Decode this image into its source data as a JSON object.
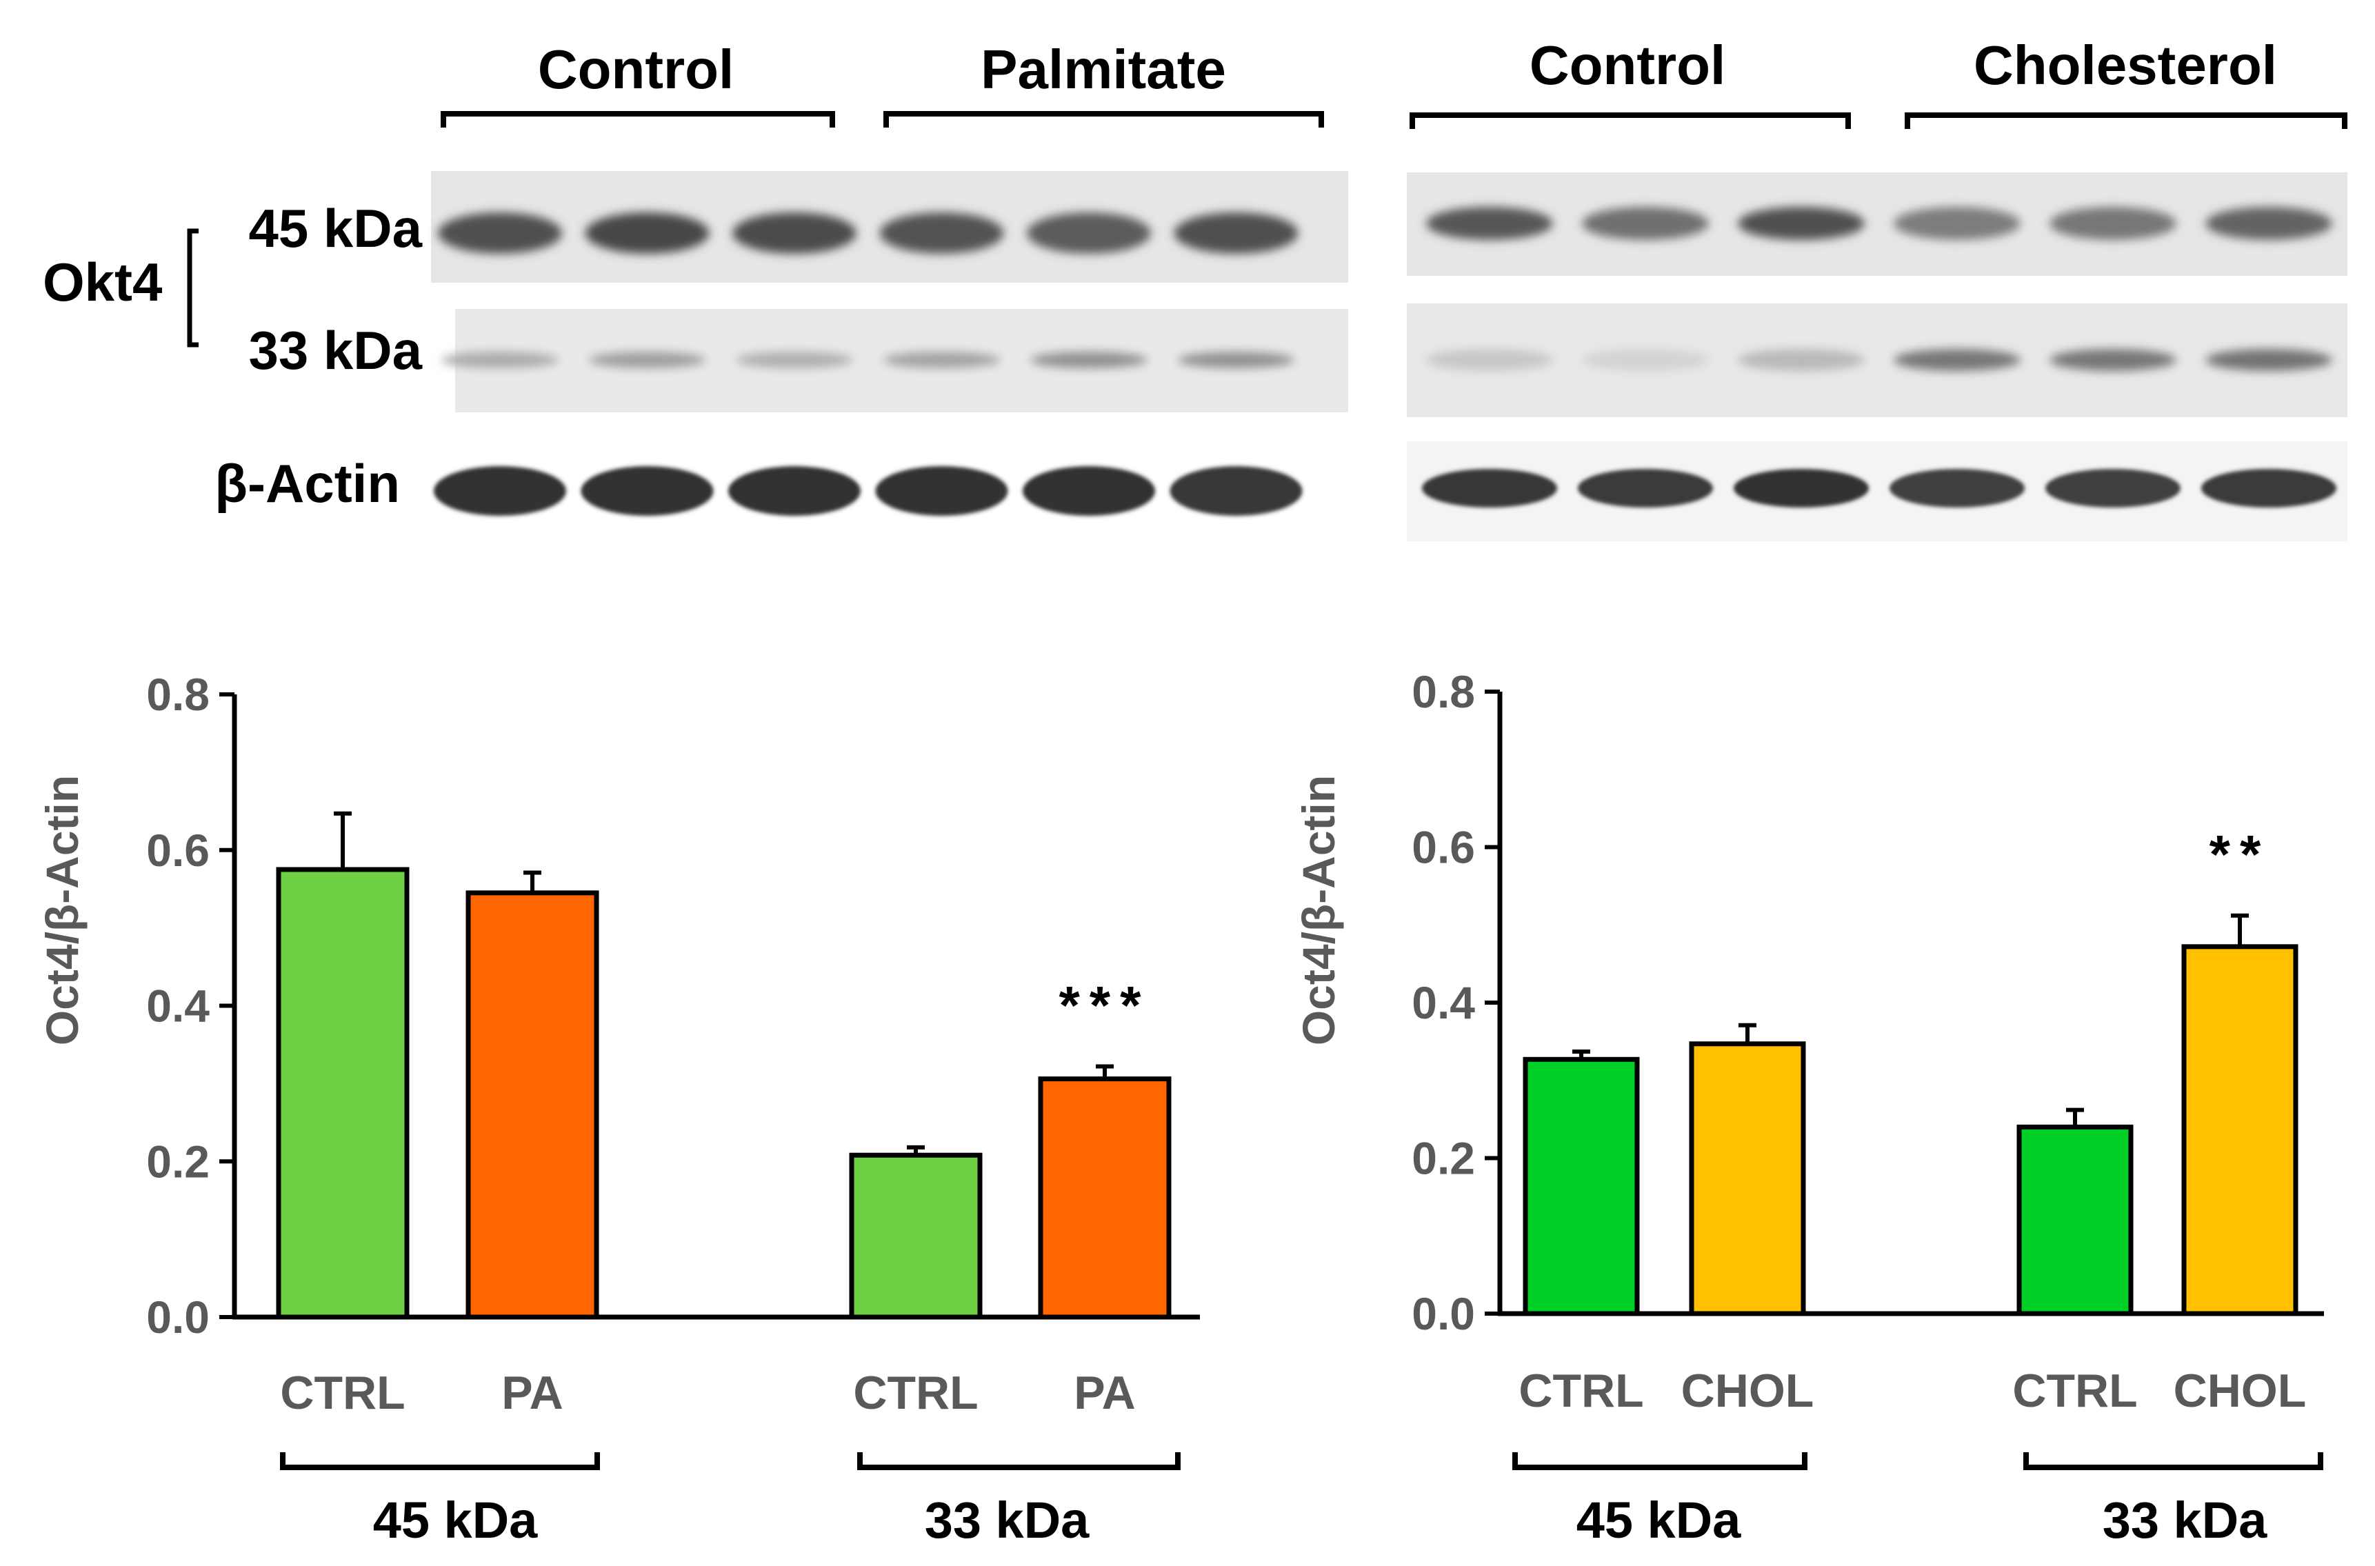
{
  "blot": {
    "left": {
      "groups": [
        "Control",
        "Palmitate"
      ],
      "lanes": [
        {
          "band45": 0.78,
          "band33": 0.32,
          "actin": 0.92
        },
        {
          "band45": 0.82,
          "band33": 0.38,
          "actin": 0.92
        },
        {
          "band45": 0.8,
          "band33": 0.3,
          "actin": 0.92
        },
        {
          "band45": 0.76,
          "band33": 0.36,
          "actin": 0.92
        },
        {
          "band45": 0.72,
          "band33": 0.45,
          "actin": 0.92
        },
        {
          "band45": 0.78,
          "band33": 0.45,
          "actin": 0.9
        }
      ]
    },
    "right": {
      "groups": [
        "Control",
        "Cholesterol"
      ],
      "lanes": [
        {
          "band45": 0.74,
          "band33": 0.18,
          "actin": 0.9
        },
        {
          "band45": 0.62,
          "band33": 0.12,
          "actin": 0.88
        },
        {
          "band45": 0.78,
          "band33": 0.25,
          "actin": 0.92
        },
        {
          "band45": 0.55,
          "band33": 0.58,
          "actin": 0.85
        },
        {
          "band45": 0.58,
          "band33": 0.58,
          "actin": 0.85
        },
        {
          "band45": 0.68,
          "band33": 0.6,
          "actin": 0.88
        }
      ]
    },
    "labels": {
      "protein": "Okt4",
      "band45": "45 kDa",
      "band33": "33 kDa",
      "actin": "β-Actin"
    }
  },
  "chart_data": [
    {
      "type": "bar",
      "ylabel": "Oct4/β-Actin",
      "ylim": [
        0,
        0.8
      ],
      "yticks": [
        "0.0",
        "0.2",
        "0.4",
        "0.6",
        "0.8"
      ],
      "categories": [
        "CTRL",
        "PA",
        "CTRL",
        "PA"
      ],
      "groups": [
        {
          "label": "45 kDa",
          "indices": [
            0,
            1
          ]
        },
        {
          "label": "33 kDa",
          "indices": [
            2,
            3
          ]
        }
      ],
      "values": [
        0.575,
        0.545,
        0.208,
        0.306
      ],
      "errors": [
        0.072,
        0.026,
        0.01,
        0.016
      ],
      "colors": [
        "#6ed145",
        "#ff6600",
        "#6ed145",
        "#ff6600"
      ],
      "annotations": [
        {
          "index": 3,
          "text": "***"
        }
      ]
    },
    {
      "type": "bar",
      "ylabel": "Oct4/β-Actin",
      "ylim": [
        0,
        0.8
      ],
      "yticks": [
        "0.0",
        "0.2",
        "0.4",
        "0.6",
        "0.8"
      ],
      "categories": [
        "CTRL",
        "CHOL",
        "CTRL",
        "CHOL"
      ],
      "groups": [
        {
          "label": "45 kDa",
          "indices": [
            0,
            1
          ]
        },
        {
          "label": "33 kDa",
          "indices": [
            2,
            3
          ]
        }
      ],
      "values": [
        0.327,
        0.347,
        0.24,
        0.472
      ],
      "errors": [
        0.01,
        0.024,
        0.022,
        0.04
      ],
      "colors": [
        "#00d026",
        "#ffc000",
        "#00d026",
        "#ffc000"
      ],
      "annotations": [
        {
          "index": 3,
          "text": "**"
        }
      ]
    }
  ]
}
